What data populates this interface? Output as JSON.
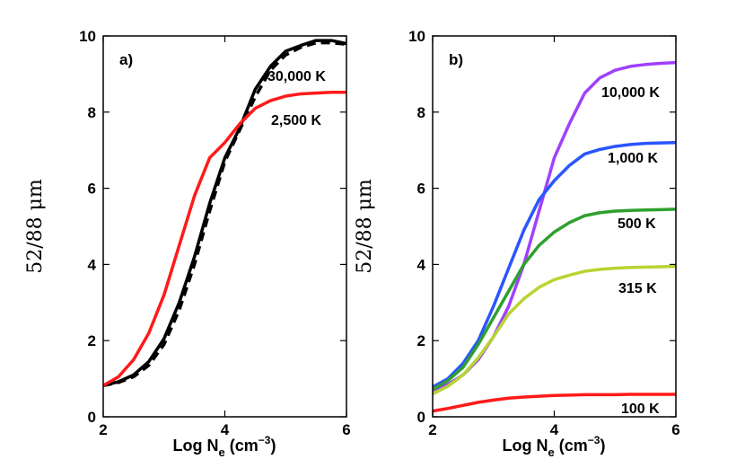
{
  "chart_data": [
    {
      "panel_label": "a)",
      "type": "line",
      "xlabel": "Log Ne (cm-3)",
      "xlabel_parts": {
        "main": "Log N",
        "sub": "e",
        "unit_open": " (cm",
        "sup": "−3",
        "unit_close": ")"
      },
      "ylabel": "52/88 μm",
      "xlim": [
        2,
        6
      ],
      "ylim": [
        0,
        10
      ],
      "xticks": [
        2,
        4,
        6
      ],
      "yticks": [
        0,
        2,
        4,
        6,
        8,
        10
      ],
      "series": [
        {
          "name": "30,000 K",
          "label": "30,000 K",
          "color": "#000000",
          "dash": "solid",
          "x": [
            2.0,
            2.25,
            2.5,
            2.75,
            3.0,
            3.25,
            3.5,
            3.75,
            4.0,
            4.25,
            4.5,
            4.75,
            5.0,
            5.25,
            5.5,
            5.75,
            6.0
          ],
          "y": [
            0.82,
            0.92,
            1.1,
            1.45,
            2.05,
            3.0,
            4.2,
            5.6,
            6.8,
            7.6,
            8.6,
            9.2,
            9.6,
            9.75,
            9.88,
            9.88,
            9.8
          ]
        },
        {
          "name": "30,000 K (dashed)",
          "label": "",
          "color": "#000000",
          "dash": "dashed",
          "x": [
            2.0,
            2.25,
            2.5,
            2.75,
            3.0,
            3.25,
            3.5,
            3.75,
            4.0,
            4.25,
            4.5,
            4.75,
            5.0,
            5.25,
            5.5,
            5.75,
            6.0
          ],
          "y": [
            0.82,
            0.9,
            1.05,
            1.35,
            1.9,
            2.8,
            4.0,
            5.4,
            6.7,
            7.55,
            8.4,
            9.1,
            9.5,
            9.7,
            9.82,
            9.82,
            9.78
          ]
        },
        {
          "name": "2,500 K",
          "label": "2,500 K",
          "color": "#ff1a1a",
          "dash": "solid",
          "x": [
            2.0,
            2.25,
            2.5,
            2.75,
            3.0,
            3.25,
            3.5,
            3.75,
            4.0,
            4.25,
            4.5,
            4.75,
            5.0,
            5.25,
            5.5,
            5.75,
            6.0
          ],
          "y": [
            0.82,
            1.05,
            1.5,
            2.2,
            3.2,
            4.5,
            5.8,
            6.8,
            7.2,
            7.7,
            8.1,
            8.3,
            8.42,
            8.48,
            8.5,
            8.52,
            8.52
          ]
        }
      ]
    },
    {
      "panel_label": "b)",
      "type": "line",
      "xlabel": "Log Ne (cm-3)",
      "xlabel_parts": {
        "main": "Log N",
        "sub": "e",
        "unit_open": " (cm",
        "sup": "−3",
        "unit_close": ")"
      },
      "ylabel": "52/88 μm",
      "xlim": [
        2,
        6
      ],
      "ylim": [
        0,
        10
      ],
      "xticks": [
        2,
        4,
        6
      ],
      "yticks": [
        0,
        2,
        4,
        6,
        8,
        10
      ],
      "series": [
        {
          "name": "10,000 K",
          "label": "10,000 K",
          "color": "#a040ff",
          "dash": "solid",
          "x": [
            2.0,
            2.25,
            2.5,
            2.75,
            3.0,
            3.25,
            3.5,
            3.75,
            4.0,
            4.25,
            4.5,
            4.75,
            5.0,
            5.25,
            5.5,
            5.75,
            6.0
          ],
          "y": [
            0.7,
            0.85,
            1.1,
            1.5,
            2.1,
            2.9,
            4.0,
            5.4,
            6.8,
            7.7,
            8.5,
            8.9,
            9.1,
            9.2,
            9.25,
            9.28,
            9.3
          ]
        },
        {
          "name": "1,000 K",
          "label": "1,000 K",
          "color": "#2a55ff",
          "dash": "solid",
          "x": [
            2.0,
            2.25,
            2.5,
            2.75,
            3.0,
            3.25,
            3.5,
            3.75,
            4.0,
            4.25,
            4.5,
            4.75,
            5.0,
            5.25,
            5.5,
            5.75,
            6.0
          ],
          "y": [
            0.78,
            1.0,
            1.4,
            2.0,
            2.9,
            3.9,
            4.9,
            5.7,
            6.2,
            6.6,
            6.9,
            7.02,
            7.1,
            7.15,
            7.18,
            7.19,
            7.2
          ]
        },
        {
          "name": "500 K",
          "label": "500 K",
          "color": "#2ea02e",
          "dash": "solid",
          "x": [
            2.0,
            2.25,
            2.5,
            2.75,
            3.0,
            3.25,
            3.5,
            3.75,
            4.0,
            4.25,
            4.5,
            4.75,
            5.0,
            5.25,
            5.5,
            5.75,
            6.0
          ],
          "y": [
            0.72,
            0.95,
            1.3,
            1.9,
            2.6,
            3.3,
            4.0,
            4.5,
            4.85,
            5.1,
            5.28,
            5.36,
            5.4,
            5.42,
            5.43,
            5.44,
            5.45
          ]
        },
        {
          "name": "315 K",
          "label": "315 K",
          "color": "#b8d432",
          "dash": "solid",
          "x": [
            2.0,
            2.25,
            2.5,
            2.75,
            3.0,
            3.25,
            3.5,
            3.75,
            4.0,
            4.25,
            4.5,
            4.75,
            5.0,
            5.25,
            5.5,
            5.75,
            6.0
          ],
          "y": [
            0.6,
            0.8,
            1.1,
            1.55,
            2.1,
            2.7,
            3.1,
            3.4,
            3.6,
            3.72,
            3.82,
            3.87,
            3.9,
            3.92,
            3.93,
            3.94,
            3.95
          ]
        },
        {
          "name": "100 K",
          "label": "100 K",
          "color": "#ff1a1a",
          "dash": "solid",
          "x": [
            2.0,
            2.25,
            2.5,
            2.75,
            3.0,
            3.25,
            3.5,
            3.75,
            4.0,
            4.25,
            4.5,
            4.75,
            5.0,
            5.25,
            5.5,
            5.75,
            6.0
          ],
          "y": [
            0.15,
            0.22,
            0.3,
            0.38,
            0.44,
            0.49,
            0.52,
            0.54,
            0.56,
            0.57,
            0.58,
            0.58,
            0.58,
            0.59,
            0.59,
            0.59,
            0.59
          ]
        }
      ]
    }
  ]
}
